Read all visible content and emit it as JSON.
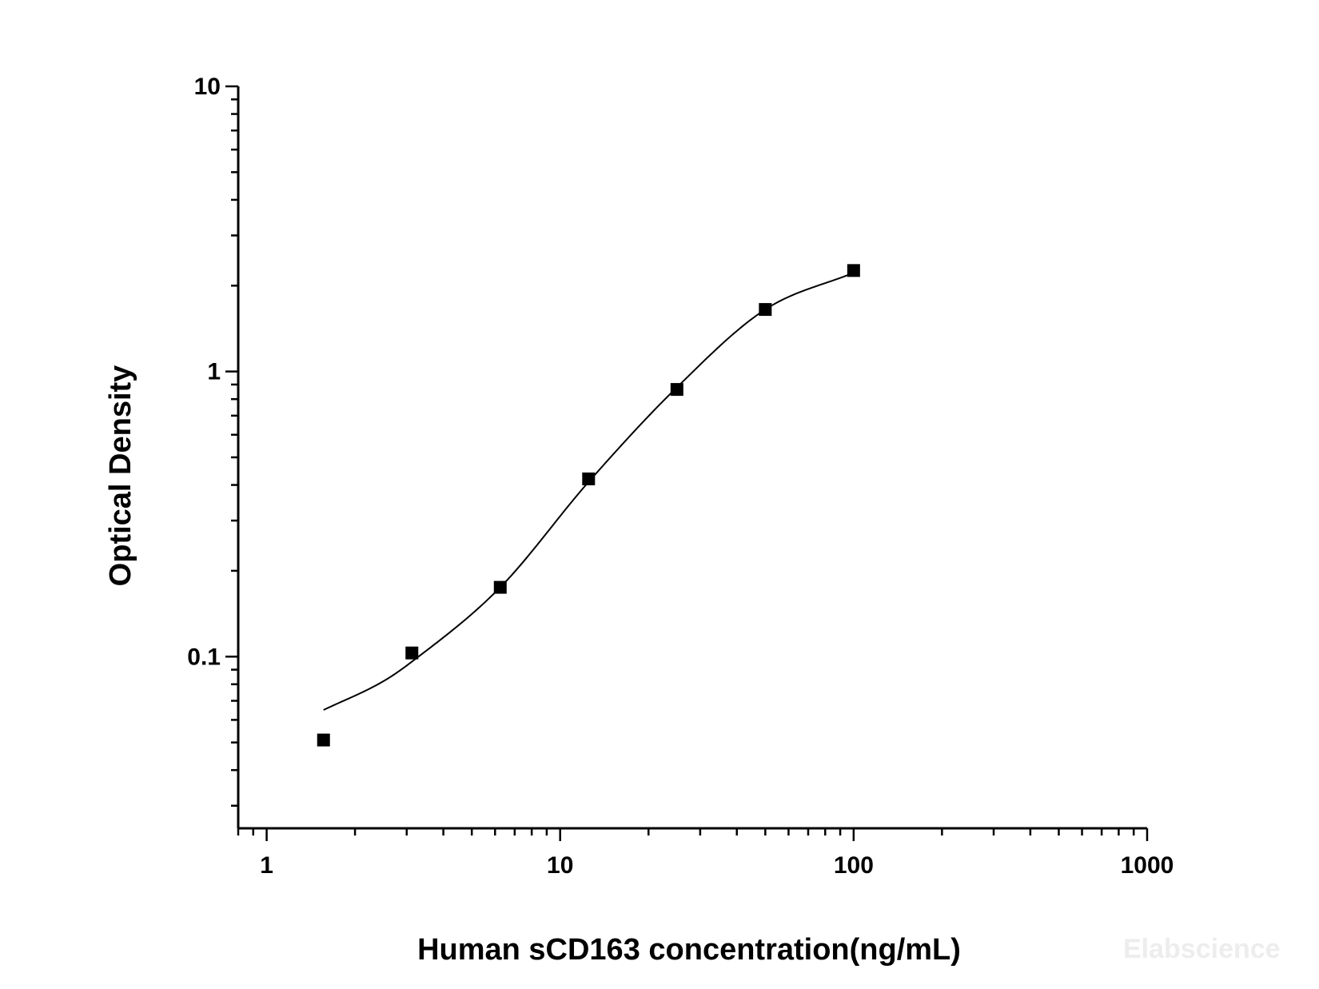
{
  "chart_data": {
    "type": "scatter",
    "xlabel": "Human  sCD163 concentration(ng/mL)",
    "ylabel": "Optical Density",
    "xscale": "log",
    "yscale": "log",
    "xlim": [
      0.8,
      1000
    ],
    "ylim": [
      0.025,
      10
    ],
    "xticks": [
      {
        "value": 1,
        "label": "1"
      },
      {
        "value": 10,
        "label": "10"
      },
      {
        "value": 100,
        "label": "100"
      },
      {
        "value": 1000,
        "label": "1000"
      }
    ],
    "yticks": [
      {
        "value": 0.1,
        "label": "0.1"
      },
      {
        "value": 1,
        "label": "1"
      },
      {
        "value": 10,
        "label": "10"
      }
    ],
    "grid": false,
    "series": [
      {
        "marker": "square",
        "points": [
          {
            "x": 1.5625,
            "y": 0.051
          },
          {
            "x": 3.125,
            "y": 0.103
          },
          {
            "x": 6.25,
            "y": 0.175
          },
          {
            "x": 12.5,
            "y": 0.42
          },
          {
            "x": 25,
            "y": 0.865
          },
          {
            "x": 50,
            "y": 1.65
          },
          {
            "x": 100,
            "y": 2.26
          }
        ]
      }
    ],
    "fit_curve": {
      "type": "4PL",
      "x_range": [
        1.5625,
        100
      ],
      "points": [
        {
          "x": 1.5625,
          "y": 0.065
        },
        {
          "x": 2.5,
          "y": 0.082
        },
        {
          "x": 3.125,
          "y": 0.096
        },
        {
          "x": 6.25,
          "y": 0.175
        },
        {
          "x": 12.5,
          "y": 0.41
        },
        {
          "x": 25,
          "y": 0.88
        },
        {
          "x": 50,
          "y": 1.65
        },
        {
          "x": 100,
          "y": 2.22
        }
      ]
    }
  },
  "watermark": "Elabscience"
}
